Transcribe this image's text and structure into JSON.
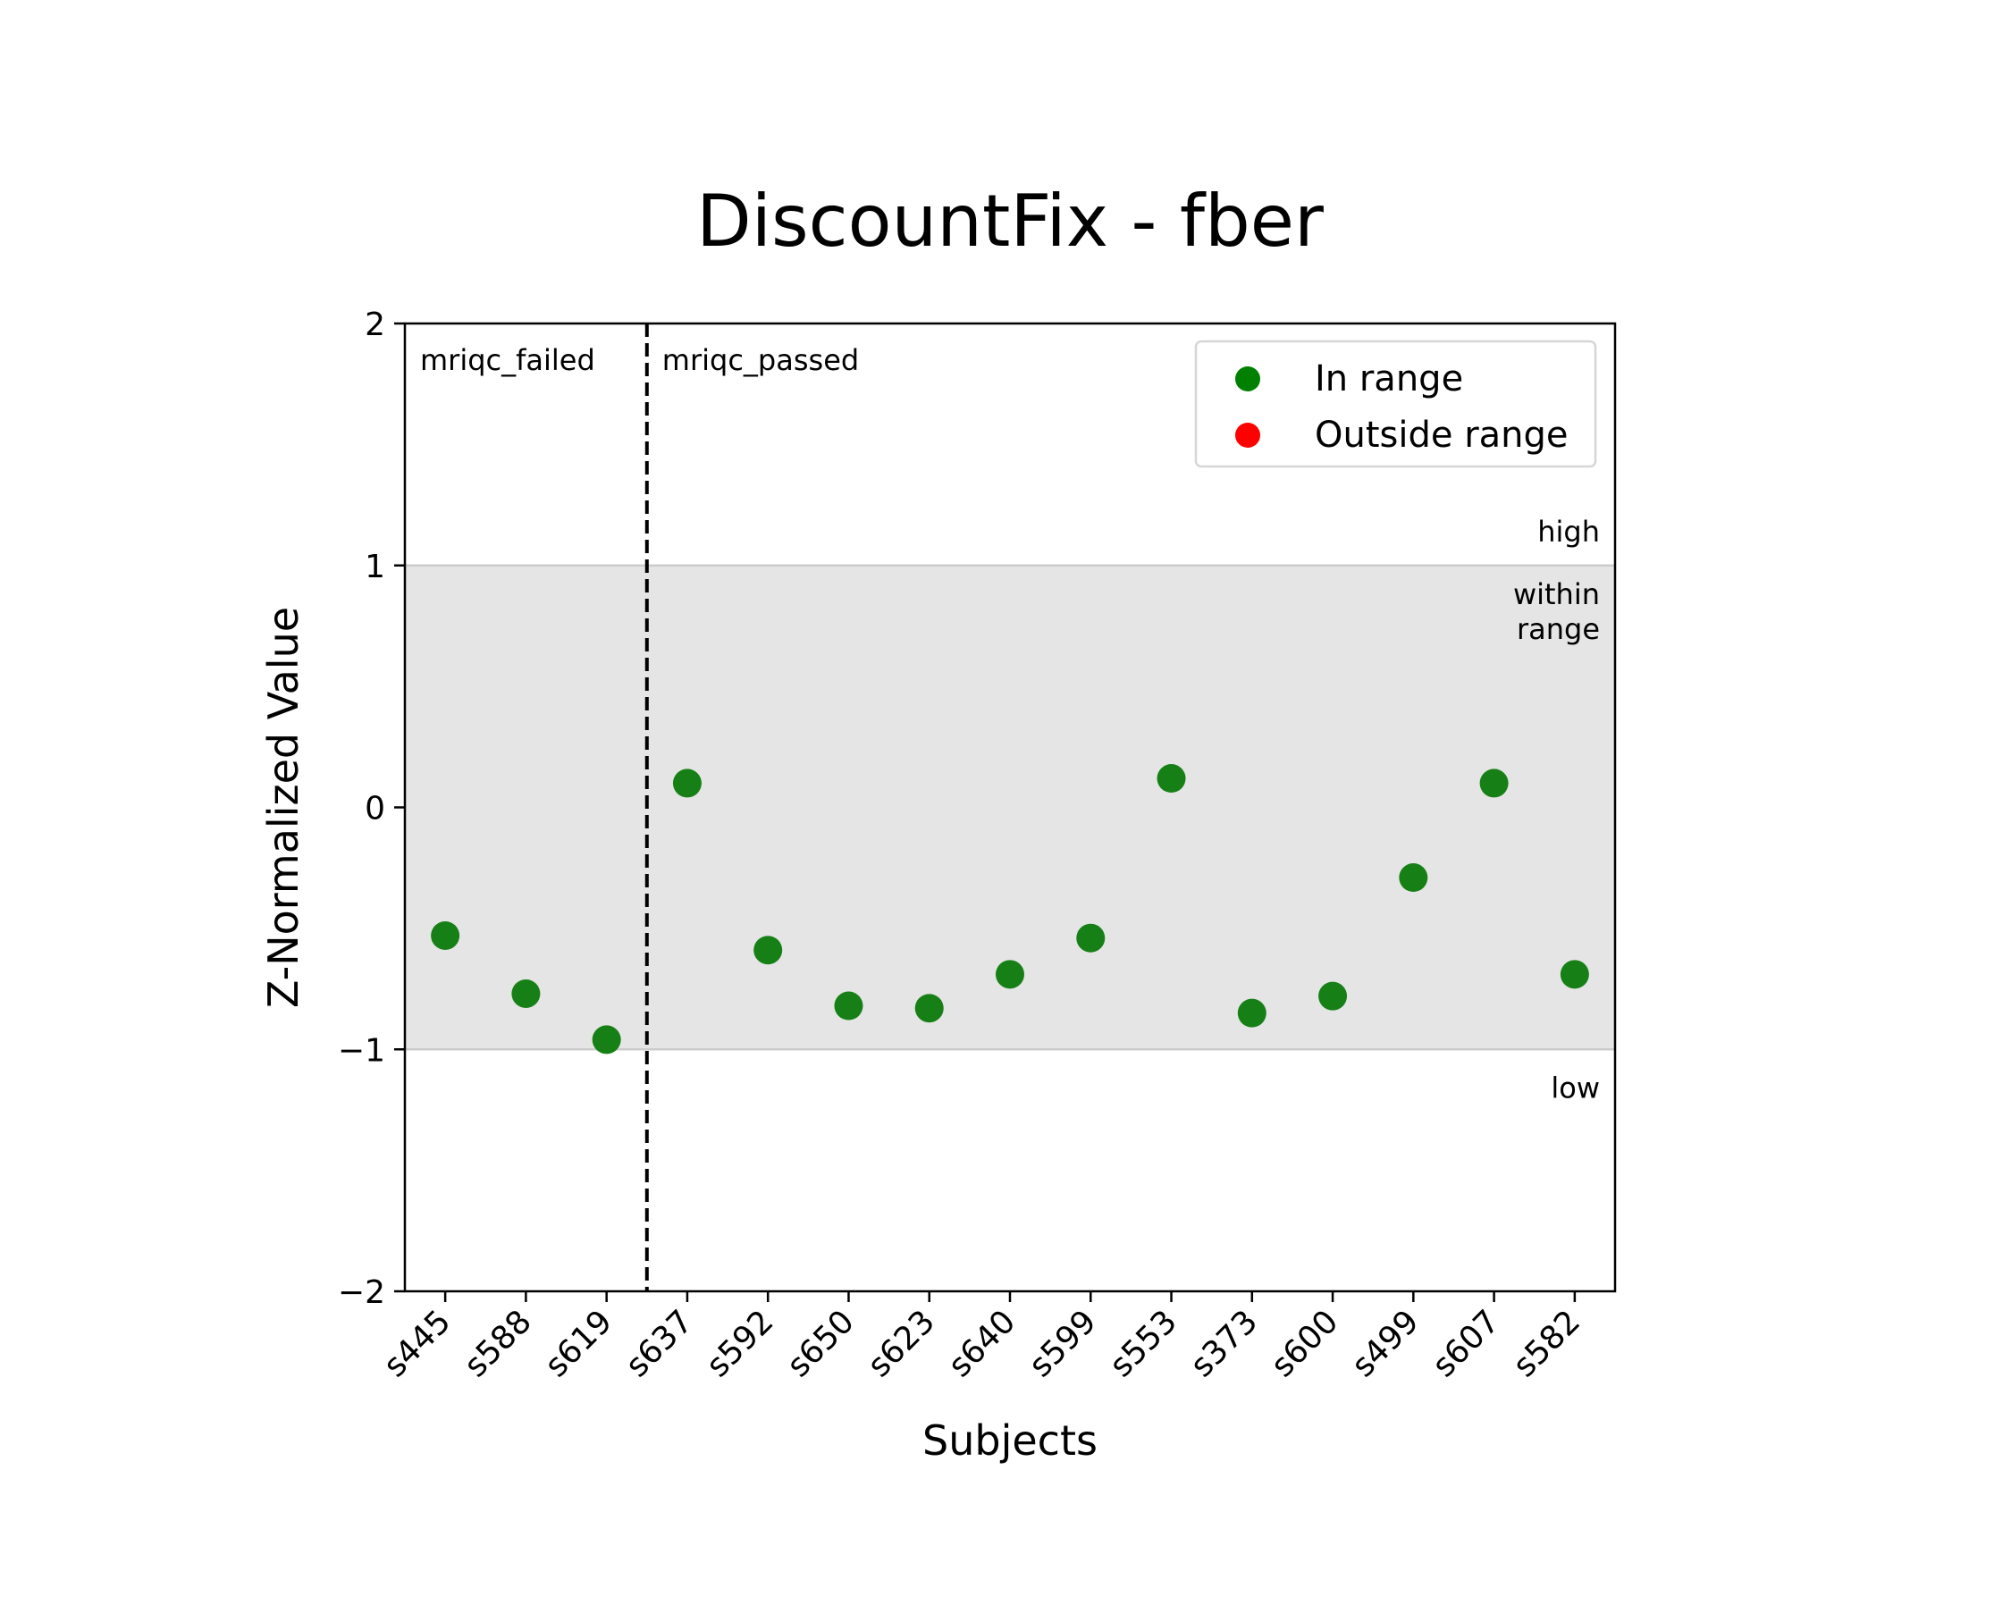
{
  "chart_data": {
    "type": "scatter",
    "title": "DiscountFix - fber",
    "xlabel": "Subjects",
    "ylabel": "Z-Normalized Value",
    "ylim": [
      -2,
      2
    ],
    "yticks": [
      2,
      1,
      0,
      -1,
      -2
    ],
    "ytick_labels": [
      "2",
      "1",
      "0",
      "−1",
      "−2"
    ],
    "categories": [
      "s445",
      "s588",
      "s619",
      "s637",
      "s592",
      "s650",
      "s623",
      "s640",
      "s599",
      "s553",
      "s373",
      "s600",
      "s499",
      "s607",
      "s582"
    ],
    "values": [
      -0.53,
      -0.77,
      -0.96,
      0.1,
      -0.59,
      -0.82,
      -0.83,
      -0.69,
      -0.54,
      0.12,
      -0.85,
      -0.78,
      -0.29,
      0.1,
      -0.69
    ],
    "band": {
      "low": -1,
      "high": 1
    },
    "group_split_after_index": 2,
    "group_labels": [
      "mriqc_failed",
      "mriqc_passed"
    ],
    "range_labels": {
      "high": "high",
      "within": [
        "within",
        "range"
      ],
      "low": "low"
    },
    "legend": {
      "position": "top-right",
      "entries": [
        {
          "label": "In range",
          "color": "#008000"
        },
        {
          "label": "Outside range",
          "color": "#ff0000"
        }
      ]
    },
    "colors": {
      "in_range": "#168016",
      "band": "#e5e5e5"
    }
  }
}
